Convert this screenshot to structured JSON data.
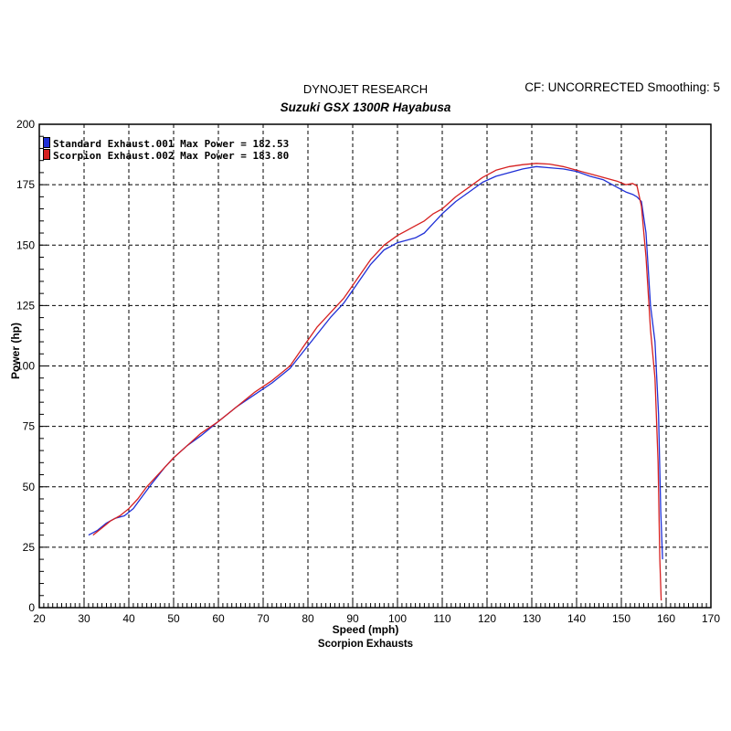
{
  "header": {
    "company": "DYNOJET RESEARCH",
    "cf": "CF: UNCORRECTED  Smoothing: 5",
    "title": "Suzuki GSX 1300R Hayabusa"
  },
  "footer": "Scorpion Exhausts",
  "chart_data": {
    "type": "line",
    "title": "Suzuki GSX 1300R Hayabusa",
    "xlabel": "Speed (mph)",
    "ylabel": "Power (hp)",
    "xlim": [
      20,
      170
    ],
    "ylim": [
      0,
      200
    ],
    "xticks": [
      20,
      30,
      40,
      50,
      60,
      70,
      80,
      90,
      100,
      110,
      120,
      130,
      140,
      150,
      160,
      170
    ],
    "yticks": [
      0,
      25,
      50,
      75,
      100,
      125,
      150,
      175,
      200
    ],
    "grid": true,
    "legend": "top-left",
    "series": [
      {
        "name": "Standard Exhaust.001 Max Power = 182.53",
        "color": "#1f2fd6",
        "x": [
          31,
          33,
          35,
          37,
          39,
          41,
          43,
          45,
          48,
          50,
          53,
          56,
          60,
          64,
          68,
          72,
          76,
          79,
          82,
          85,
          88,
          91,
          94,
          97,
          100,
          102,
          104,
          106,
          108,
          110,
          113,
          116,
          119,
          122,
          125,
          128,
          131,
          134,
          137,
          140,
          143,
          146,
          149,
          151,
          152.5,
          153.5,
          154.5,
          155.5,
          156.5,
          157.5,
          158.3,
          158.8,
          159.2
        ],
        "y": [
          30,
          32,
          35,
          37,
          38,
          41,
          46,
          51,
          58,
          62,
          67,
          71,
          77,
          83,
          88,
          93,
          99,
          106,
          113,
          120,
          126,
          134,
          142,
          148,
          151,
          152,
          153,
          155,
          159,
          163,
          168,
          172,
          176,
          178.5,
          180,
          181.5,
          182.5,
          182,
          181.5,
          180.5,
          178.5,
          177,
          174,
          172,
          171,
          170,
          168,
          155,
          125,
          110,
          80,
          40,
          20
        ]
      },
      {
        "name": "Scorpion Exhaust.002 Max Power = 183.80",
        "color": "#d62020",
        "x": [
          32,
          34,
          36,
          38,
          40,
          42,
          44,
          46,
          48,
          50,
          53,
          56,
          60,
          64,
          68,
          72,
          76,
          79,
          82,
          85,
          88,
          91,
          94,
          97,
          100,
          102,
          104,
          106,
          108,
          110,
          113,
          116,
          119,
          122,
          125,
          128,
          131,
          134,
          137,
          140,
          143,
          146,
          149,
          151,
          152.5,
          153.5,
          154.5,
          155.5,
          156.5,
          157.5,
          158.2,
          158.6,
          158.9
        ],
        "y": [
          30,
          33,
          36,
          38,
          41,
          45,
          50,
          54,
          58,
          62,
          67,
          72,
          77,
          83,
          89,
          94,
          100,
          108,
          116,
          122,
          128,
          136,
          144,
          150,
          154,
          156,
          158,
          160,
          163,
          165,
          170,
          174,
          178,
          181,
          182.5,
          183.3,
          183.8,
          183.5,
          182.5,
          181,
          179.5,
          178,
          176.5,
          175,
          175.5,
          174.5,
          166,
          145,
          115,
          95,
          60,
          20,
          3
        ]
      }
    ]
  }
}
